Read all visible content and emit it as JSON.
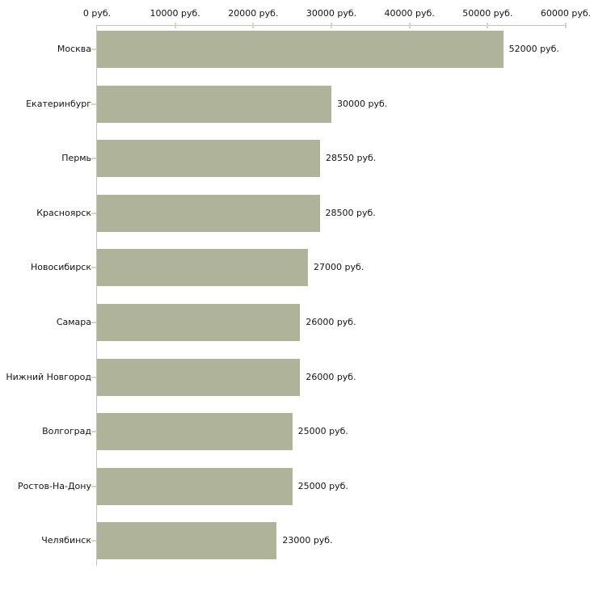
{
  "chart_data": {
    "type": "bar",
    "orientation": "horizontal",
    "title": "",
    "xlabel": "",
    "ylabel": "",
    "unit": "руб.",
    "categories": [
      "Москва",
      "Екатеринбург",
      "Пермь",
      "Красноярск",
      "Новосибирск",
      "Самара",
      "Нижний Новгород",
      "Волгоград",
      "Ростов-На-Дону",
      "Челябинск"
    ],
    "values": [
      52000,
      30000,
      28550,
      28500,
      27000,
      26000,
      26000,
      25000,
      25000,
      23000
    ],
    "value_labels": [
      "52000 руб.",
      "30000 руб.",
      "28550 руб.",
      "28500 руб.",
      "27000 руб.",
      "26000 руб.",
      "26000 руб.",
      "25000 руб.",
      "25000 руб.",
      "23000 руб."
    ],
    "x_ticks": [
      0,
      10000,
      20000,
      30000,
      40000,
      50000,
      60000
    ],
    "x_tick_labels": [
      "0 руб.",
      "10000 руб.",
      "20000 руб.",
      "30000 руб.",
      "40000 руб.",
      "50000 руб.",
      "60000 руб."
    ],
    "xlim": [
      0,
      60000
    ],
    "grid": false,
    "legend": false,
    "colors": {
      "bar": "#aeb399",
      "axis_line": "#c3c3c3",
      "tick_mark": "#d5d7ba",
      "text": "#141414",
      "background": "#ffffff"
    }
  }
}
